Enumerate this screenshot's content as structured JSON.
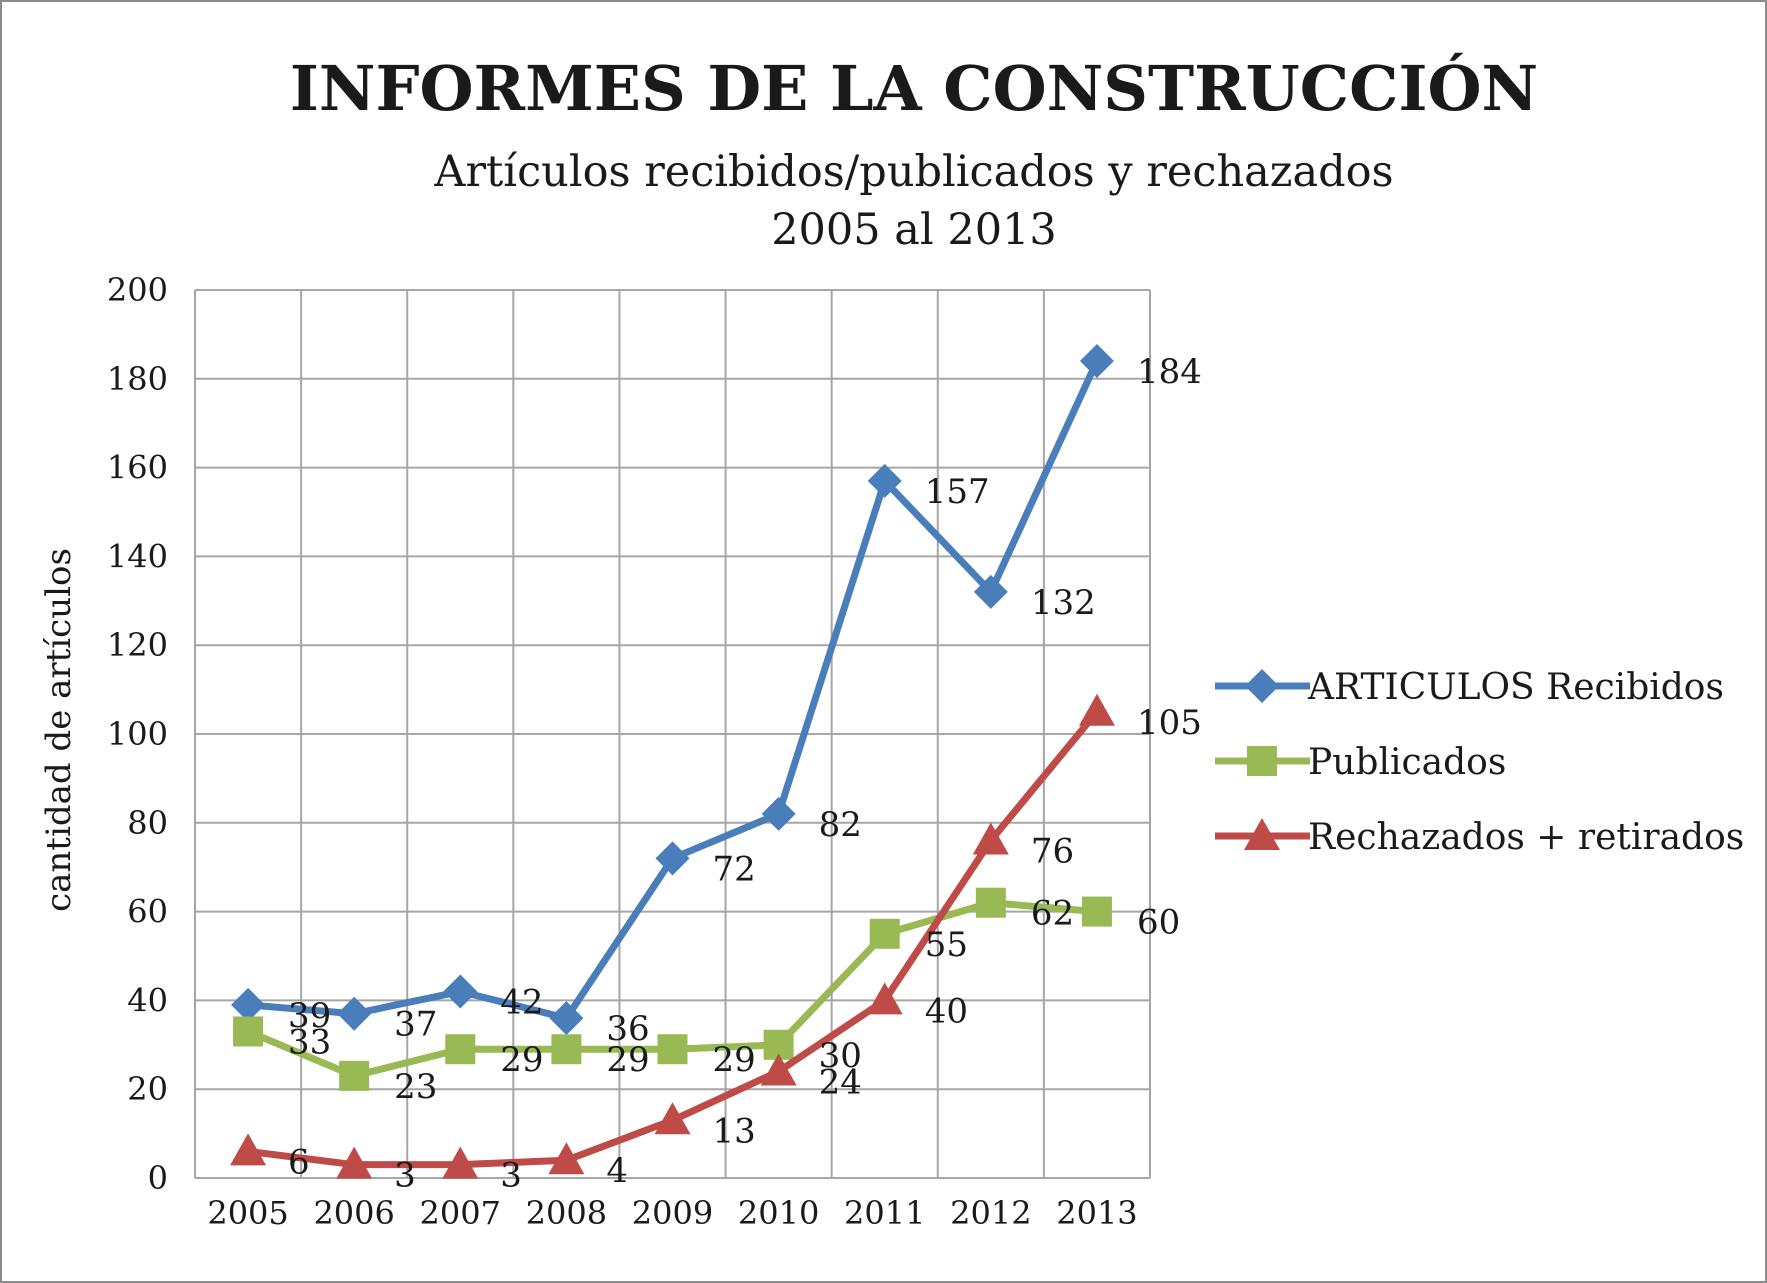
{
  "chart_data": {
    "type": "line",
    "title": "INFORMES DE LA CONSTRUCCIÓN",
    "subtitle": [
      "Artículos recibidos/publicados y rechazados",
      "2005 al 2013"
    ],
    "xlabel": "",
    "ylabel": "cantidad de artículos",
    "categories": [
      "2005",
      "2006",
      "2007",
      "2008",
      "2009",
      "2010",
      "2011",
      "2012",
      "2013"
    ],
    "ylim": [
      0,
      200
    ],
    "yticks": [
      0,
      20,
      40,
      60,
      80,
      100,
      120,
      140,
      160,
      180,
      200
    ],
    "grid": true,
    "legend_position": "right",
    "series": [
      {
        "name": "ARTICULOS Recibidos",
        "values": [
          39,
          37,
          42,
          36,
          72,
          82,
          157,
          132,
          184
        ],
        "color": "#4a7ebb",
        "marker": "diamond"
      },
      {
        "name": "Publicados",
        "values": [
          33,
          23,
          29,
          29,
          29,
          30,
          55,
          62,
          60
        ],
        "color": "#98b954",
        "marker": "square"
      },
      {
        "name": "Rechazados + retirados",
        "values": [
          6,
          3,
          3,
          4,
          13,
          24,
          40,
          76,
          105
        ],
        "color": "#be4b48",
        "marker": "triangle"
      }
    ]
  }
}
